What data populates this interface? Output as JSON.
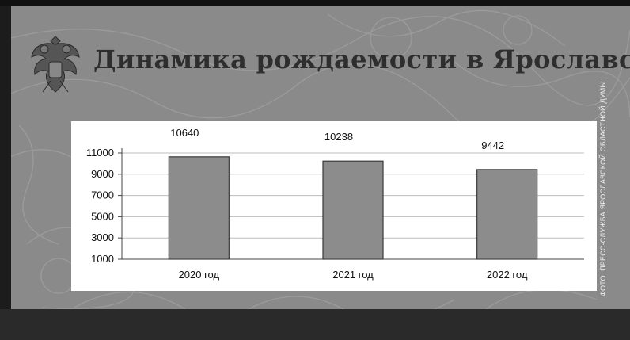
{
  "slide": {
    "title": "Динамика рождаемости в Ярославской области",
    "emblem_icon": "double-headed-eagle-emblem",
    "photo_credit": "ФОТО: ПРЕСС-СЛУЖБА ЯРОСЛАВСКОЙ ОБЛАСТНОЙ ДУМЫ"
  },
  "colors": {
    "background": "#8a8a8a",
    "bar_fill": "#8c8c8c",
    "bar_stroke": "#3a3a3a",
    "plot_background": "#ffffff",
    "gridline": "#bdbdbd"
  },
  "chart_data": {
    "type": "bar",
    "title": "",
    "xlabel": "",
    "ylabel": "",
    "categories": [
      "2020 год",
      "2021 год",
      "2022 год"
    ],
    "values": [
      10640,
      10238,
      9442
    ],
    "data_labels": [
      "10640",
      "10238",
      "9442"
    ],
    "ylim": [
      1000,
      11000
    ],
    "yticks": [
      1000,
      3000,
      5000,
      7000,
      9000,
      11000
    ],
    "ytick_labels": [
      "1000",
      "3000",
      "5000",
      "7000",
      "9000",
      "11000"
    ],
    "grid": true,
    "legend": "none"
  }
}
